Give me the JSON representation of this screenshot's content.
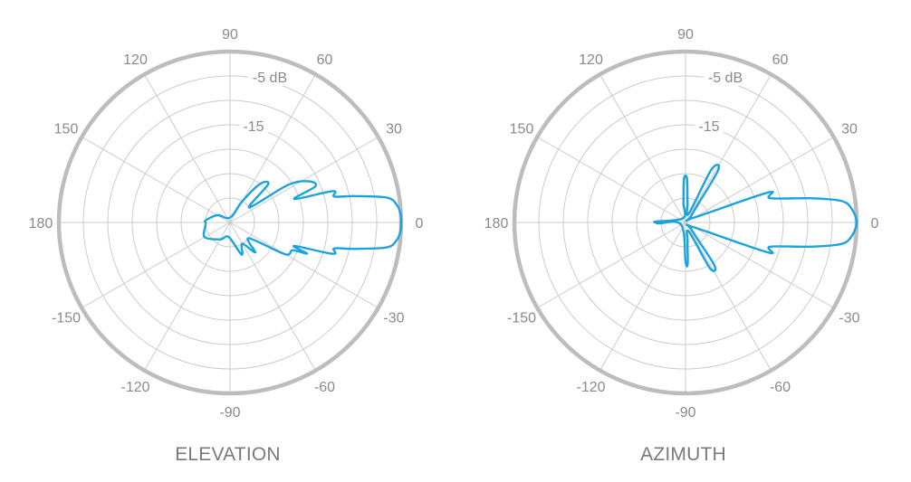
{
  "chart_data": [
    {
      "type": "polar",
      "title": "ELEVATION",
      "angle_ticks": [
        90,
        60,
        30,
        0,
        -30,
        -60,
        -90,
        -120,
        -150,
        180,
        150,
        120
      ],
      "ring_labels": [
        {
          "value": -5,
          "label": "-5 dB"
        },
        {
          "value": -15,
          "label": "-15"
        }
      ],
      "r_range_db": [
        -35,
        0
      ],
      "ring_step_db": 5,
      "series": [
        {
          "color": "#1aa3dc",
          "points": [
            [
              -40,
              -30
            ],
            [
              -30,
              -22
            ],
            [
              -24,
              -21
            ],
            [
              -22,
              -18
            ],
            [
              -20,
              -21
            ],
            [
              -17,
              -13
            ],
            [
              -14,
              -13
            ],
            [
              -12,
              -9
            ],
            [
              -9,
              -2.5
            ],
            [
              -6,
              -0.7
            ],
            [
              -3,
              -0.1
            ],
            [
              0,
              0
            ],
            [
              3,
              -0.1
            ],
            [
              6,
              -0.7
            ],
            [
              9,
              -2.5
            ],
            [
              12,
              -9
            ],
            [
              14,
              -13
            ],
            [
              17,
              -13
            ],
            [
              20,
              -21
            ],
            [
              23,
              -16
            ],
            [
              28,
              -17
            ],
            [
              33,
              -21
            ],
            [
              38,
              -30
            ],
            [
              45,
              -24
            ],
            [
              52,
              -25
            ],
            [
              60,
              -30
            ],
            [
              90,
              -34
            ],
            [
              150,
              -32
            ],
            [
              175,
              -30
            ],
            [
              180,
              -30
            ],
            [
              -175,
              -30
            ],
            [
              -150,
              -29
            ],
            [
              -120,
              -31
            ],
            [
              -95,
              -32
            ],
            [
              -70,
              -28
            ],
            [
              -60,
              -30
            ],
            [
              -50,
              -27
            ]
          ]
        }
      ]
    },
    {
      "type": "polar",
      "title": "AZIMUTH",
      "angle_ticks": [
        90,
        60,
        30,
        0,
        -30,
        -60,
        -90,
        -120,
        -150,
        180,
        150,
        120
      ],
      "ring_labels": [
        {
          "value": -5,
          "label": "-5 dB"
        },
        {
          "value": -15,
          "label": "-15"
        }
      ],
      "r_range_db": [
        -35,
        0
      ],
      "ring_step_db": 5,
      "series": [
        {
          "color": "#1aa3dc",
          "points": [
            [
              -90,
              -27
            ],
            [
              -87,
              -26.5
            ],
            [
              -84,
              -31
            ],
            [
              -70,
              -33
            ],
            [
              -62,
              -24.5
            ],
            [
              -56,
              -24.5
            ],
            [
              -50,
              -33
            ],
            [
              -30,
              -33
            ],
            [
              -20,
              -17
            ],
            [
              -16,
              -17
            ],
            [
              -11,
              -9
            ],
            [
              -8,
              -3
            ],
            [
              -5,
              -1
            ],
            [
              0,
              0
            ],
            [
              5,
              -1
            ],
            [
              8,
              -3
            ],
            [
              11,
              -9
            ],
            [
              16,
              -17
            ],
            [
              20,
              -17
            ],
            [
              30,
              -33
            ],
            [
              50,
              -33
            ],
            [
              58,
              -22.5
            ],
            [
              64,
              -23
            ],
            [
              70,
              -33
            ],
            [
              84,
              -31
            ],
            [
              88,
              -26
            ],
            [
              92,
              -26
            ],
            [
              96,
              -31
            ],
            [
              120,
              -34
            ],
            [
              178,
              -29
            ],
            [
              180,
              -29
            ],
            [
              -178,
              -29.5
            ],
            [
              -150,
              -34
            ]
          ]
        }
      ]
    }
  ]
}
